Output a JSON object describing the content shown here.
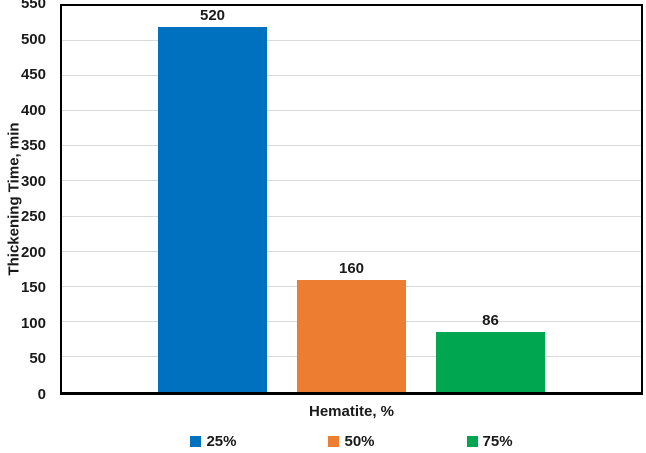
{
  "chart_data": {
    "type": "bar",
    "title": "",
    "xlabel": "Hematite, %",
    "ylabel": "Thickening Time, min",
    "ylim": [
      0,
      550
    ],
    "ytick_step": 50,
    "grid": true,
    "legend_position": "bottom",
    "categories": [
      "25%",
      "50%",
      "75%"
    ],
    "series": [
      {
        "name": "25%",
        "value": 520,
        "data_label": "520",
        "color": "#0071BE"
      },
      {
        "name": "50%",
        "value": 160,
        "data_label": "160",
        "color": "#ED7D31"
      },
      {
        "name": "75%",
        "value": 86,
        "data_label": "86",
        "color": "#00A650"
      }
    ],
    "colors": {
      "grid": "#D9D9D9",
      "axis": "#000000",
      "text": "#1A1A1A",
      "background": "#FFFFFF"
    }
  }
}
